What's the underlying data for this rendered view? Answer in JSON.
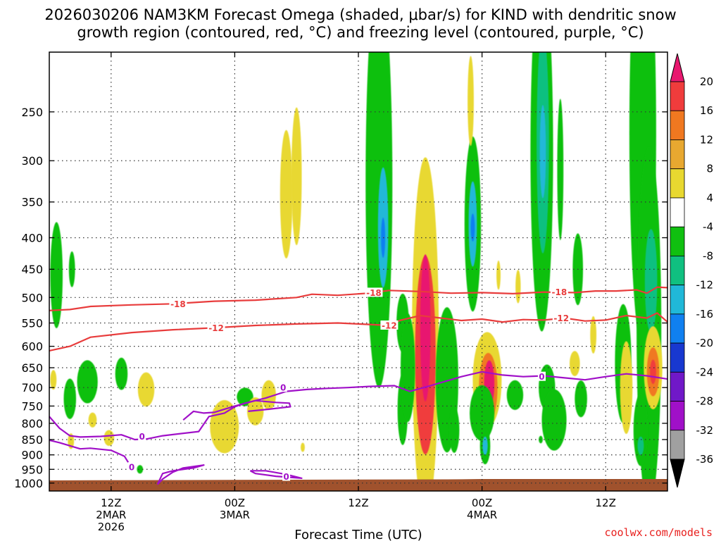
{
  "chart_data": {
    "type": "time-height",
    "title_line1": "2026030206 NAM3KM Forecast Omega (shaded, μbar/s) for KIND with dendritic snow",
    "title_line2": "growth region (contoured, red, °C) and freezing level (contoured, purple, °C)",
    "xlabel": "Forecast Time (UTC)",
    "watermark": "coolwx.com/models",
    "y_axis": {
      "units": "hPa",
      "range": [
        200,
        1030
      ],
      "ticks": [
        250,
        300,
        350,
        400,
        450,
        500,
        550,
        600,
        650,
        700,
        750,
        800,
        850,
        900,
        950,
        1000
      ]
    },
    "x_axis": {
      "range_hours": [
        0,
        60
      ],
      "ticks": [
        {
          "hour": 6,
          "lines": [
            "12Z",
            "2MAR",
            "2026"
          ]
        },
        {
          "hour": 18,
          "lines": [
            "00Z",
            "3MAR"
          ]
        },
        {
          "hour": 30,
          "lines": [
            "12Z"
          ]
        },
        {
          "hour": 42,
          "lines": [
            "00Z",
            "4MAR"
          ]
        },
        {
          "hour": 54,
          "lines": [
            "12Z"
          ]
        }
      ]
    },
    "colorbar": {
      "labels": [
        "20",
        "16",
        "12",
        "8",
        "4",
        "-4",
        "-8",
        "-12",
        "-16",
        "-20",
        "-24",
        "-28",
        "-32",
        "-36"
      ],
      "bins": [
        {
          "lo": 20,
          "hi": 99,
          "color": "#e8186f"
        },
        {
          "lo": 16,
          "hi": 20,
          "color": "#f03c3c"
        },
        {
          "lo": 12,
          "hi": 16,
          "color": "#f07820"
        },
        {
          "lo": 8,
          "hi": 12,
          "color": "#e8a830"
        },
        {
          "lo": 4,
          "hi": 8,
          "color": "#e8d830"
        },
        {
          "lo": -4,
          "hi": 4,
          "color": "#ffffff"
        },
        {
          "lo": -8,
          "hi": -4,
          "color": "#10c010"
        },
        {
          "lo": -12,
          "hi": -8,
          "color": "#10c080"
        },
        {
          "lo": -16,
          "hi": -12,
          "color": "#20b8d8"
        },
        {
          "lo": -20,
          "hi": -16,
          "color": "#1080f0"
        },
        {
          "lo": -24,
          "hi": -20,
          "color": "#1838d0"
        },
        {
          "lo": -28,
          "hi": -24,
          "color": "#7018c8"
        },
        {
          "lo": -32,
          "hi": -28,
          "color": "#a010c8"
        },
        {
          "lo": -36,
          "hi": -32,
          "color": "#a0a0a0"
        },
        {
          "lo": -99,
          "hi": -36,
          "color": "#000000"
        }
      ]
    },
    "omega_cells": [
      {
        "t": 0.7,
        "p": 460,
        "dt": 0.6,
        "dp": 90,
        "v": -6
      },
      {
        "t": 2.2,
        "p": 450,
        "dt": 0.3,
        "dp": 30,
        "v": -6
      },
      {
        "t": 0.4,
        "p": 680,
        "dt": 0.3,
        "dp": 25,
        "v": 5
      },
      {
        "t": 2.0,
        "p": 730,
        "dt": 0.6,
        "dp": 55,
        "v": -6
      },
      {
        "t": 3.7,
        "p": 685,
        "dt": 1.0,
        "dp": 55,
        "v": -7
      },
      {
        "t": 7.0,
        "p": 665,
        "dt": 0.6,
        "dp": 40,
        "v": -6
      },
      {
        "t": 9.4,
        "p": 705,
        "dt": 0.8,
        "dp": 45,
        "v": 5
      },
      {
        "t": 4.2,
        "p": 790,
        "dt": 0.4,
        "dp": 22,
        "v": 5
      },
      {
        "t": 5.8,
        "p": 845,
        "dt": 0.5,
        "dp": 25,
        "v": 5
      },
      {
        "t": 2.1,
        "p": 855,
        "dt": 0.3,
        "dp": 25,
        "v": 5
      },
      {
        "t": 8.8,
        "p": 950,
        "dt": 0.3,
        "dp": 15,
        "v": -6
      },
      {
        "t": 17.0,
        "p": 810,
        "dt": 1.4,
        "dp": 80,
        "v": 5
      },
      {
        "t": 19.0,
        "p": 725,
        "dt": 0.8,
        "dp": 25,
        "v": -7
      },
      {
        "t": 20.0,
        "p": 765,
        "dt": 0.8,
        "dp": 40,
        "v": 5
      },
      {
        "t": 21.3,
        "p": 720,
        "dt": 0.7,
        "dp": 40,
        "v": 5
      },
      {
        "t": 24.6,
        "p": 875,
        "dt": 0.2,
        "dp": 15,
        "v": 5
      },
      {
        "t": 24.0,
        "p": 318,
        "dt": 0.5,
        "dp": 80,
        "v": 5
      },
      {
        "t": 23.0,
        "p": 340,
        "dt": 0.6,
        "dp": 80,
        "v": 5
      },
      {
        "t": 32.0,
        "p": 325,
        "dt": 1.3,
        "dp": 210,
        "v": -7
      },
      {
        "t": 32.4,
        "p": 385,
        "dt": 0.5,
        "dp": 85,
        "v": -14
      },
      {
        "t": 32.4,
        "p": 400,
        "dt": 0.2,
        "dp": 30,
        "v": -18
      },
      {
        "t": 34.3,
        "p": 550,
        "dt": 0.6,
        "dp": 60,
        "v": -6
      },
      {
        "t": 34.3,
        "p": 760,
        "dt": 0.5,
        "dp": 100,
        "v": -7
      },
      {
        "t": 36.5,
        "p": 580,
        "dt": 1.3,
        "dp": 340,
        "v": 6
      },
      {
        "t": 36.5,
        "p": 620,
        "dt": 1.0,
        "dp": 220,
        "v": 18
      },
      {
        "t": 36.5,
        "p": 560,
        "dt": 0.5,
        "dp": 150,
        "v": 24
      },
      {
        "t": 34.8,
        "p": 650,
        "dt": 0.7,
        "dp": 130,
        "v": -7
      },
      {
        "t": 38.6,
        "p": 680,
        "dt": 1.1,
        "dp": 180,
        "v": -7
      },
      {
        "t": 39.3,
        "p": 820,
        "dt": 0.5,
        "dp": 70,
        "v": -8
      },
      {
        "t": 41.1,
        "p": 380,
        "dt": 0.8,
        "dp": 120,
        "v": -8
      },
      {
        "t": 41.1,
        "p": 380,
        "dt": 0.4,
        "dp": 60,
        "v": -14
      },
      {
        "t": 41.1,
        "p": 385,
        "dt": 0.2,
        "dp": 20,
        "v": -18
      },
      {
        "t": 40.9,
        "p": 240,
        "dt": 0.3,
        "dp": 40,
        "v": 5
      },
      {
        "t": 42.5,
        "p": 680,
        "dt": 1.4,
        "dp": 120,
        "v": 6
      },
      {
        "t": 42.6,
        "p": 700,
        "dt": 0.9,
        "dp": 90,
        "v": 14
      },
      {
        "t": 42.7,
        "p": 690,
        "dt": 0.5,
        "dp": 60,
        "v": 22
      },
      {
        "t": 42.0,
        "p": 770,
        "dt": 1.2,
        "dp": 80,
        "v": -7
      },
      {
        "t": 42.3,
        "p": 870,
        "dt": 0.5,
        "dp": 60,
        "v": -7
      },
      {
        "t": 42.3,
        "p": 870,
        "dt": 0.25,
        "dp": 30,
        "v": -14
      },
      {
        "t": 43.6,
        "p": 460,
        "dt": 0.2,
        "dp": 25,
        "v": 5
      },
      {
        "t": 45.2,
        "p": 720,
        "dt": 0.8,
        "dp": 40,
        "v": -6
      },
      {
        "t": 47.8,
        "p": 290,
        "dt": 1.1,
        "dp": 170,
        "v": -7
      },
      {
        "t": 47.9,
        "p": 280,
        "dt": 0.6,
        "dp": 110,
        "v": -12
      },
      {
        "t": 47.9,
        "p": 290,
        "dt": 0.3,
        "dp": 50,
        "v": -14
      },
      {
        "t": 45.5,
        "p": 480,
        "dt": 0.25,
        "dp": 30,
        "v": 5
      },
      {
        "t": 49.6,
        "p": 310,
        "dt": 0.3,
        "dp": 80,
        "v": -7
      },
      {
        "t": 51.3,
        "p": 450,
        "dt": 0.5,
        "dp": 60,
        "v": -7
      },
      {
        "t": 48.3,
        "p": 700,
        "dt": 0.8,
        "dp": 60,
        "v": -6
      },
      {
        "t": 51.6,
        "p": 730,
        "dt": 0.6,
        "dp": 50,
        "v": -6
      },
      {
        "t": 51.0,
        "p": 640,
        "dt": 0.5,
        "dp": 30,
        "v": 5
      },
      {
        "t": 49.0,
        "p": 790,
        "dt": 1.2,
        "dp": 90,
        "v": -7
      },
      {
        "t": 47.7,
        "p": 850,
        "dt": 0.2,
        "dp": 12,
        "v": -6
      },
      {
        "t": 52.8,
        "p": 575,
        "dt": 0.3,
        "dp": 40,
        "v": 5
      },
      {
        "t": 55.7,
        "p": 640,
        "dt": 0.8,
        "dp": 140,
        "v": -7
      },
      {
        "t": 56.0,
        "p": 700,
        "dt": 0.6,
        "dp": 120,
        "v": 5
      },
      {
        "t": 57.6,
        "p": 270,
        "dt": 1.3,
        "dp": 180,
        "v": -7
      },
      {
        "t": 58.2,
        "p": 560,
        "dt": 1.2,
        "dp": 330,
        "v": -7
      },
      {
        "t": 58.4,
        "p": 470,
        "dt": 0.6,
        "dp": 90,
        "v": -12
      },
      {
        "t": 58.6,
        "p": 650,
        "dt": 0.9,
        "dp": 100,
        "v": 6
      },
      {
        "t": 58.6,
        "p": 660,
        "dt": 0.6,
        "dp": 60,
        "v": 12
      },
      {
        "t": 58.6,
        "p": 660,
        "dt": 0.3,
        "dp": 30,
        "v": 18
      },
      {
        "t": 57.4,
        "p": 820,
        "dt": 0.7,
        "dp": 110,
        "v": -7
      },
      {
        "t": 57.4,
        "p": 870,
        "dt": 0.3,
        "dp": 30,
        "v": -12
      }
    ],
    "contours": [
      {
        "name": "dgz-minus18",
        "value": "-18",
        "color": "#e83c3c",
        "t": [
          0,
          2,
          4,
          8,
          12,
          16,
          20,
          24,
          25.5,
          28,
          31,
          33,
          36,
          39,
          42,
          45,
          48,
          51,
          53,
          55,
          57,
          58,
          59,
          60
        ],
        "p": [
          525,
          523,
          517,
          514,
          512,
          507,
          505,
          500,
          494,
          496,
          492,
          487,
          489,
          492,
          491,
          493,
          490,
          491,
          488,
          488,
          486,
          492,
          481,
          482
        ],
        "labels": [
          {
            "t": 12.5,
            "p": 512
          },
          {
            "t": 31.5,
            "p": 491
          },
          {
            "t": 49.5,
            "p": 490
          }
        ]
      },
      {
        "name": "dgz-minus12",
        "value": "-12",
        "color": "#e83c3c",
        "t": [
          0,
          2,
          4,
          8,
          12,
          16,
          20,
          24,
          28,
          30,
          33,
          34,
          36,
          38,
          40,
          42,
          44,
          46,
          48,
          50,
          52,
          54,
          56,
          58,
          59,
          60
        ],
        "p": [
          610,
          600,
          580,
          570,
          564,
          560,
          555,
          552,
          550,
          552,
          555,
          545,
          535,
          540,
          545,
          542,
          548,
          543,
          544,
          540,
          546,
          544,
          535,
          540,
          530,
          548
        ],
        "labels": [
          {
            "t": 16.2,
            "p": 560
          },
          {
            "t": 33.0,
            "p": 555
          },
          {
            "t": 49.7,
            "p": 540
          }
        ]
      },
      {
        "name": "freezing-main",
        "value": "0",
        "color": "#a010c8",
        "t": [
          0,
          1,
          2,
          3,
          5,
          7,
          8.3,
          9.5,
          11,
          14.5,
          15.5,
          17,
          18,
          19,
          21,
          23,
          25,
          27,
          29,
          31,
          33.5,
          35,
          37,
          40,
          42,
          44,
          46,
          48,
          50,
          52,
          54,
          56,
          58,
          60
        ],
        "p": [
          780,
          815,
          838,
          842,
          840,
          835,
          850,
          848,
          838,
          825,
          780,
          770,
          752,
          742,
          728,
          710,
          705,
          702,
          700,
          697,
          695,
          710,
          695,
          672,
          660,
          668,
          672,
          670,
          675,
          680,
          672,
          665,
          670,
          678
        ],
        "labels": [
          {
            "t": 9.0,
            "p": 840
          },
          {
            "t": 22.7,
            "p": 700
          },
          {
            "t": 47.8,
            "p": 672
          }
        ]
      },
      {
        "name": "freezing-lower-left",
        "value": "0",
        "color": "#a010c8",
        "t": [
          0,
          1,
          2,
          3,
          4,
          6,
          7.3,
          8
        ],
        "p": [
          852,
          860,
          870,
          880,
          878,
          885,
          905,
          945
        ],
        "labels": [
          {
            "t": 8.0,
            "p": 942
          }
        ]
      },
      {
        "name": "freezing-loop-a",
        "value": "0",
        "color": "#a010c8",
        "t": [
          10.5,
          11,
          12,
          13,
          15,
          14,
          12,
          11,
          10.5
        ],
        "p": [
          1005,
          985,
          960,
          945,
          935,
          945,
          955,
          965,
          1005
        ],
        "labels": []
      },
      {
        "name": "freezing-loop-b",
        "value": "0",
        "color": "#a010c8",
        "t": [
          19.5,
          21,
          23,
          24.5,
          22,
          20,
          19.5
        ],
        "p": [
          955,
          955,
          968,
          982,
          975,
          965,
          955
        ],
        "labels": [
          {
            "t": 23.0,
            "p": 976
          }
        ]
      },
      {
        "name": "freezing-lower-middle",
        "value": "0",
        "color": "#a010c8",
        "t": [
          13,
          14,
          15,
          16,
          18,
          20,
          22,
          23.3,
          23.4,
          21,
          19.3
        ],
        "p": [
          790,
          765,
          770,
          768,
          750,
          735,
          740,
          742,
          752,
          760,
          765
        ],
        "labels": []
      }
    ],
    "ground": {
      "color": "#a0522d",
      "level_hpa": 988
    },
    "ground_profile_t": [
      0,
      20,
      40,
      42,
      60
    ],
    "ground_profile_p": [
      990,
      988,
      986,
      985,
      985
    ]
  }
}
